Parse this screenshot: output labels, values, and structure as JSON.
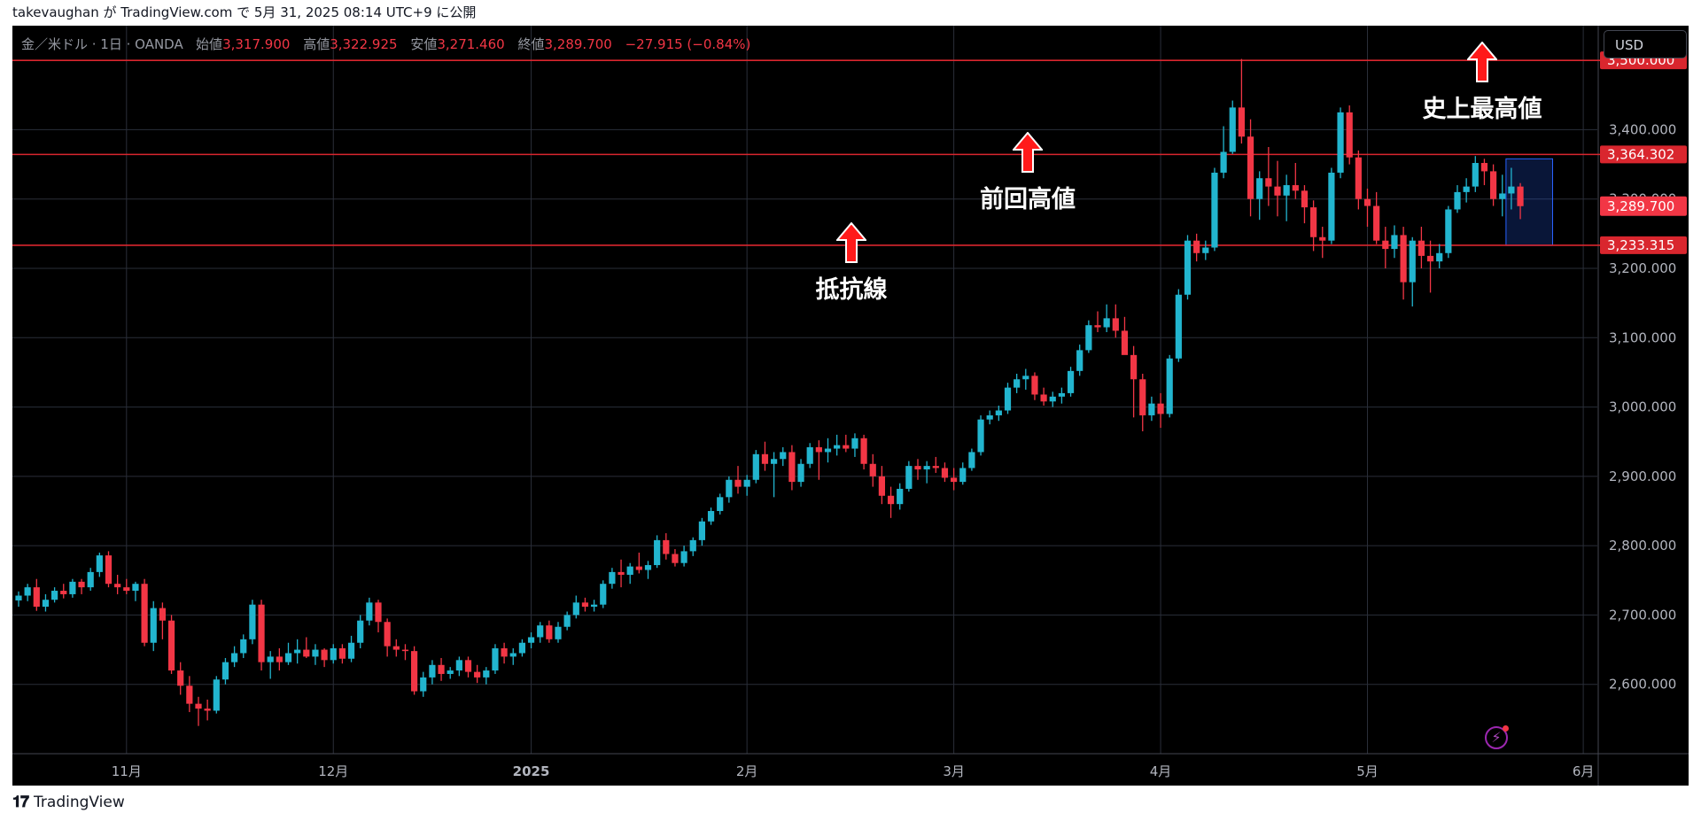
{
  "caption": "takevaughan が TradingView.com で 5月 31, 2025 08:14 UTC+9 に公開",
  "legend": {
    "symbol": "金／米ドル · 1日 · OANDA",
    "open_label": "始値",
    "open": "3,317.900",
    "high_label": "高値",
    "high": "3,322.925",
    "low_label": "安値",
    "low": "3,271.460",
    "close_label": "終値",
    "close": "3,289.700",
    "change": "−27.915 (−0.84%)"
  },
  "currency": "USD",
  "brand": "TradingView",
  "annotations": [
    {
      "text": "抵抗線",
      "price": 3200
    },
    {
      "text": "前回高値",
      "price": 3330
    },
    {
      "text": "史上最高値",
      "price": 3460
    }
  ],
  "colors": {
    "up": "#22b5cf",
    "down": "#f23645",
    "line": "#d9262e",
    "background": "#000000",
    "grid": "#2a2e39",
    "axis_text": "#b2b5be"
  },
  "chart_data": {
    "type": "candlestick",
    "symbol": "XAU/USD",
    "timeframe": "1D",
    "ylim": [
      2500,
      3550
    ],
    "y_ticks": [
      "2,600.000",
      "2,700.000",
      "2,800.000",
      "2,900.000",
      "3,000.000",
      "3,100.000",
      "3,200.000",
      "3,300.000",
      "3,400.000"
    ],
    "y_tick_values": [
      2600,
      2700,
      2800,
      2900,
      3000,
      3100,
      3200,
      3300,
      3400
    ],
    "x_labels": [
      {
        "label": "11月",
        "index": 12
      },
      {
        "label": "12月",
        "index": 35
      },
      {
        "label": "2025",
        "index": 57
      },
      {
        "label": "2月",
        "index": 81
      },
      {
        "label": "3月",
        "index": 104
      },
      {
        "label": "4月",
        "index": 127
      },
      {
        "label": "5月",
        "index": 150
      },
      {
        "label": "6月",
        "index": 174
      }
    ],
    "horizontal_lines": [
      {
        "value": 3500.0,
        "label": "3,500.000"
      },
      {
        "value": 3364.302,
        "label": "3,364.302"
      },
      {
        "value": 3233.315,
        "label": "3,233.315"
      }
    ],
    "last_price": {
      "value": 3289.7,
      "label": "3,289.700"
    },
    "highlight_box": {
      "start_index": 166,
      "end_index": 170,
      "low": 3233,
      "high": 3358
    },
    "candles": [
      [
        2721,
        2734,
        2712,
        2728
      ],
      [
        2728,
        2745,
        2720,
        2740
      ],
      [
        2740,
        2752,
        2706,
        2712
      ],
      [
        2712,
        2730,
        2705,
        2722
      ],
      [
        2722,
        2740,
        2718,
        2735
      ],
      [
        2735,
        2745,
        2724,
        2730
      ],
      [
        2730,
        2752,
        2725,
        2748
      ],
      [
        2748,
        2752,
        2730,
        2740
      ],
      [
        2740,
        2768,
        2735,
        2762
      ],
      [
        2762,
        2790,
        2755,
        2786
      ],
      [
        2786,
        2792,
        2740,
        2745
      ],
      [
        2745,
        2758,
        2730,
        2740
      ],
      [
        2740,
        2752,
        2730,
        2735
      ],
      [
        2735,
        2748,
        2720,
        2745
      ],
      [
        2745,
        2752,
        2655,
        2660
      ],
      [
        2660,
        2720,
        2648,
        2710
      ],
      [
        2710,
        2718,
        2665,
        2692
      ],
      [
        2692,
        2700,
        2615,
        2620
      ],
      [
        2620,
        2632,
        2585,
        2598
      ],
      [
        2598,
        2612,
        2560,
        2572
      ],
      [
        2572,
        2582,
        2540,
        2565
      ],
      [
        2565,
        2578,
        2548,
        2562
      ],
      [
        2562,
        2612,
        2558,
        2607
      ],
      [
        2607,
        2638,
        2600,
        2632
      ],
      [
        2632,
        2655,
        2625,
        2645
      ],
      [
        2645,
        2672,
        2638,
        2665
      ],
      [
        2665,
        2722,
        2658,
        2715
      ],
      [
        2715,
        2722,
        2620,
        2632
      ],
      [
        2632,
        2648,
        2608,
        2640
      ],
      [
        2640,
        2652,
        2620,
        2632
      ],
      [
        2632,
        2660,
        2628,
        2645
      ],
      [
        2645,
        2665,
        2630,
        2650
      ],
      [
        2650,
        2668,
        2638,
        2640
      ],
      [
        2640,
        2658,
        2628,
        2650
      ],
      [
        2650,
        2652,
        2625,
        2635
      ],
      [
        2635,
        2658,
        2630,
        2652
      ],
      [
        2652,
        2658,
        2630,
        2637
      ],
      [
        2637,
        2670,
        2632,
        2660
      ],
      [
        2660,
        2700,
        2652,
        2692
      ],
      [
        2692,
        2725,
        2685,
        2718
      ],
      [
        2718,
        2722,
        2675,
        2690
      ],
      [
        2690,
        2695,
        2640,
        2655
      ],
      [
        2655,
        2665,
        2640,
        2650
      ],
      [
        2650,
        2658,
        2635,
        2648
      ],
      [
        2648,
        2655,
        2585,
        2590
      ],
      [
        2590,
        2618,
        2582,
        2610
      ],
      [
        2610,
        2635,
        2600,
        2628
      ],
      [
        2628,
        2638,
        2605,
        2615
      ],
      [
        2615,
        2625,
        2608,
        2620
      ],
      [
        2620,
        2640,
        2612,
        2635
      ],
      [
        2635,
        2640,
        2610,
        2618
      ],
      [
        2618,
        2628,
        2602,
        2610
      ],
      [
        2610,
        2625,
        2600,
        2620
      ],
      [
        2620,
        2658,
        2615,
        2652
      ],
      [
        2652,
        2660,
        2630,
        2640
      ],
      [
        2640,
        2652,
        2628,
        2645
      ],
      [
        2645,
        2665,
        2640,
        2660
      ],
      [
        2660,
        2675,
        2652,
        2668
      ],
      [
        2668,
        2690,
        2660,
        2685
      ],
      [
        2685,
        2692,
        2660,
        2665
      ],
      [
        2665,
        2690,
        2660,
        2683
      ],
      [
        2683,
        2705,
        2678,
        2700
      ],
      [
        2700,
        2728,
        2695,
        2718
      ],
      [
        2718,
        2725,
        2705,
        2712
      ],
      [
        2712,
        2722,
        2705,
        2715
      ],
      [
        2715,
        2750,
        2710,
        2745
      ],
      [
        2745,
        2768,
        2738,
        2762
      ],
      [
        2762,
        2780,
        2740,
        2758
      ],
      [
        2758,
        2775,
        2745,
        2770
      ],
      [
        2770,
        2790,
        2760,
        2765
      ],
      [
        2765,
        2778,
        2752,
        2772
      ],
      [
        2772,
        2815,
        2768,
        2808
      ],
      [
        2808,
        2818,
        2780,
        2788
      ],
      [
        2788,
        2795,
        2770,
        2775
      ],
      [
        2775,
        2800,
        2770,
        2792
      ],
      [
        2792,
        2812,
        2785,
        2808
      ],
      [
        2808,
        2840,
        2800,
        2835
      ],
      [
        2835,
        2855,
        2830,
        2850
      ],
      [
        2850,
        2875,
        2845,
        2870
      ],
      [
        2870,
        2900,
        2862,
        2895
      ],
      [
        2895,
        2915,
        2875,
        2885
      ],
      [
        2885,
        2902,
        2872,
        2895
      ],
      [
        2895,
        2938,
        2890,
        2932
      ],
      [
        2932,
        2950,
        2908,
        2918
      ],
      [
        2918,
        2935,
        2870,
        2925
      ],
      [
        2925,
        2942,
        2915,
        2935
      ],
      [
        2935,
        2945,
        2880,
        2892
      ],
      [
        2892,
        2925,
        2885,
        2918
      ],
      [
        2918,
        2948,
        2912,
        2942
      ],
      [
        2942,
        2952,
        2895,
        2935
      ],
      [
        2935,
        2955,
        2920,
        2940
      ],
      [
        2940,
        2960,
        2930,
        2945
      ],
      [
        2945,
        2960,
        2935,
        2940
      ],
      [
        2940,
        2962,
        2928,
        2955
      ],
      [
        2955,
        2960,
        2910,
        2918
      ],
      [
        2918,
        2932,
        2885,
        2900
      ],
      [
        2900,
        2915,
        2860,
        2872
      ],
      [
        2872,
        2885,
        2840,
        2860
      ],
      [
        2860,
        2890,
        2852,
        2882
      ],
      [
        2882,
        2922,
        2878,
        2915
      ],
      [
        2915,
        2925,
        2895,
        2910
      ],
      [
        2910,
        2922,
        2890,
        2915
      ],
      [
        2915,
        2928,
        2905,
        2912
      ],
      [
        2912,
        2920,
        2892,
        2898
      ],
      [
        2898,
        2912,
        2880,
        2892
      ],
      [
        2892,
        2920,
        2888,
        2912
      ],
      [
        2912,
        2940,
        2908,
        2935
      ],
      [
        2935,
        2988,
        2930,
        2982
      ],
      [
        2982,
        2995,
        2975,
        2988
      ],
      [
        2988,
        3002,
        2980,
        2995
      ],
      [
        2995,
        3035,
        2990,
        3028
      ],
      [
        3028,
        3048,
        3020,
        3040
      ],
      [
        3040,
        3055,
        3025,
        3045
      ],
      [
        3045,
        3050,
        3010,
        3018
      ],
      [
        3018,
        3028,
        3002,
        3008
      ],
      [
        3008,
        3022,
        3000,
        3015
      ],
      [
        3015,
        3028,
        3005,
        3020
      ],
      [
        3020,
        3058,
        3015,
        3052
      ],
      [
        3052,
        3090,
        3045,
        3082
      ],
      [
        3082,
        3125,
        3078,
        3118
      ],
      [
        3118,
        3138,
        3108,
        3115
      ],
      [
        3115,
        3148,
        3108,
        3128
      ],
      [
        3128,
        3148,
        3100,
        3110
      ],
      [
        3110,
        3130,
        3085,
        3075
      ],
      [
        3075,
        3088,
        2985,
        3040
      ],
      [
        3040,
        3048,
        2965,
        2988
      ],
      [
        2988,
        3015,
        2980,
        3005
      ],
      [
        3005,
        3020,
        2970,
        2990
      ],
      [
        2990,
        3075,
        2985,
        3070
      ],
      [
        3070,
        3170,
        3065,
        3162
      ],
      [
        3162,
        3248,
        3155,
        3240
      ],
      [
        3240,
        3250,
        3210,
        3222
      ],
      [
        3222,
        3240,
        3212,
        3230
      ],
      [
        3230,
        3345,
        3225,
        3338
      ],
      [
        3338,
        3405,
        3330,
        3368
      ],
      [
        3368,
        3442,
        3365,
        3432
      ],
      [
        3432,
        3502,
        3380,
        3390
      ],
      [
        3390,
        3415,
        3275,
        3300
      ],
      [
        3300,
        3340,
        3270,
        3330
      ],
      [
        3330,
        3375,
        3290,
        3318
      ],
      [
        3318,
        3355,
        3275,
        3305
      ],
      [
        3305,
        3335,
        3268,
        3320
      ],
      [
        3320,
        3352,
        3300,
        3312
      ],
      [
        3312,
        3320,
        3265,
        3288
      ],
      [
        3288,
        3298,
        3225,
        3245
      ],
      [
        3245,
        3260,
        3215,
        3240
      ],
      [
        3240,
        3345,
        3235,
        3338
      ],
      [
        3338,
        3432,
        3330,
        3425
      ],
      [
        3425,
        3435,
        3350,
        3360
      ],
      [
        3360,
        3370,
        3285,
        3300
      ],
      [
        3300,
        3315,
        3260,
        3290
      ],
      [
        3290,
        3310,
        3235,
        3240
      ],
      [
        3240,
        3260,
        3200,
        3228
      ],
      [
        3228,
        3262,
        3215,
        3248
      ],
      [
        3248,
        3260,
        3155,
        3180
      ],
      [
        3180,
        3245,
        3145,
        3240
      ],
      [
        3240,
        3260,
        3200,
        3218
      ],
      [
        3218,
        3240,
        3165,
        3210
      ],
      [
        3210,
        3235,
        3200,
        3222
      ],
      [
        3222,
        3290,
        3215,
        3285
      ],
      [
        3285,
        3320,
        3280,
        3310
      ],
      [
        3310,
        3330,
        3295,
        3318
      ],
      [
        3318,
        3362,
        3310,
        3352
      ],
      [
        3352,
        3358,
        3320,
        3340
      ],
      [
        3340,
        3350,
        3290,
        3300
      ],
      [
        3300,
        3335,
        3275,
        3308
      ],
      [
        3308,
        3345,
        3285,
        3318
      ],
      [
        3318,
        3323,
        3271,
        3289.7
      ]
    ]
  }
}
